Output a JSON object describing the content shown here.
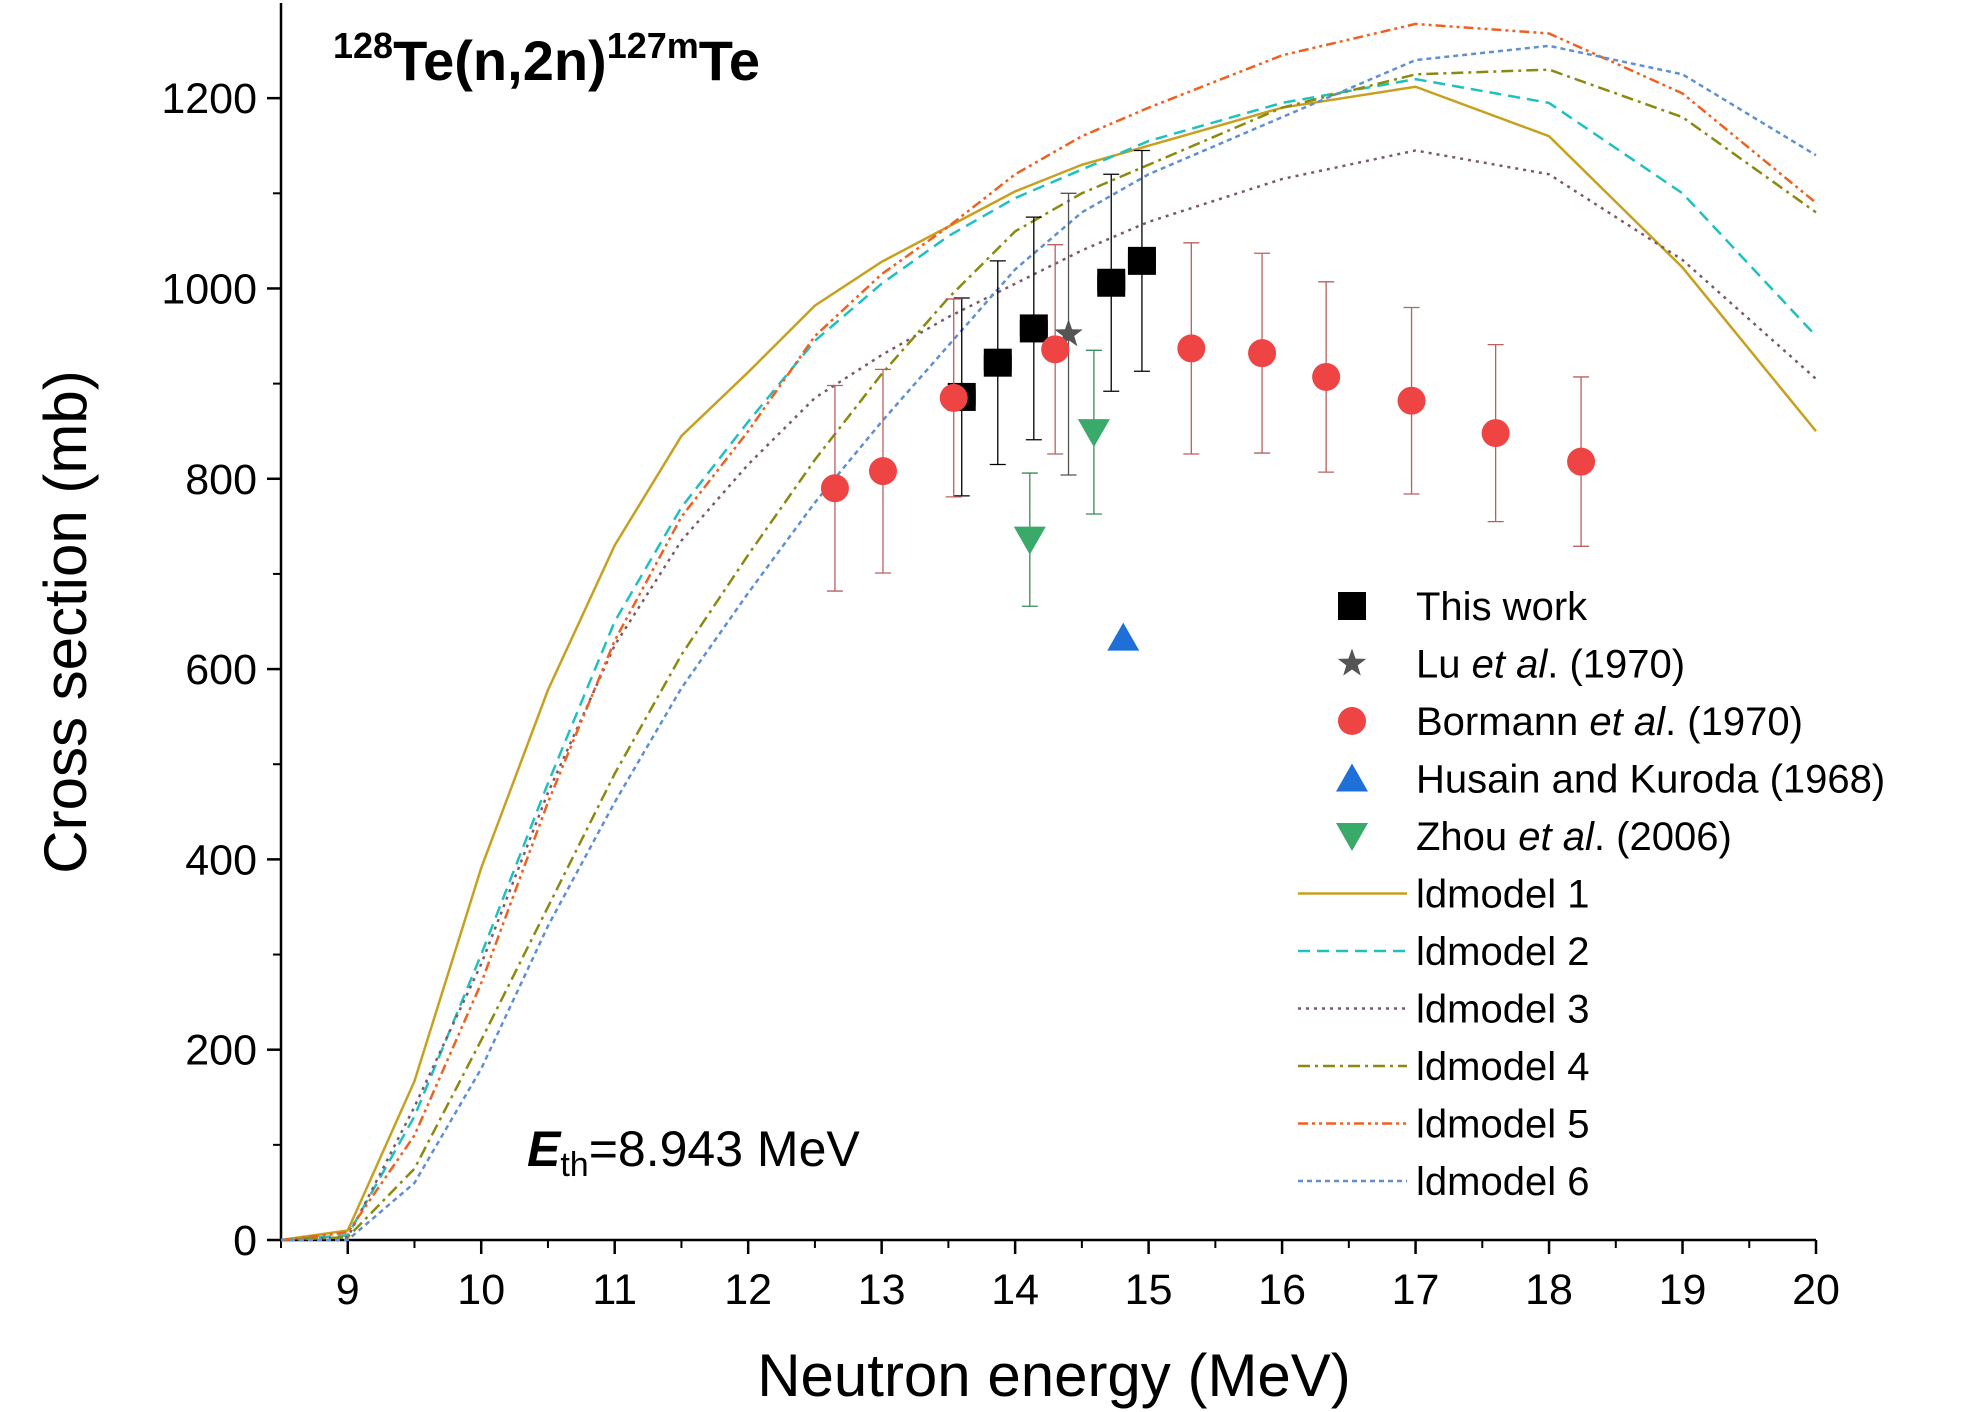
{
  "chart_data": {
    "type": "line",
    "title": {
      "mass1": "128",
      "reaction": "Te(n,2n)",
      "mass2": "127m",
      "element": "Te"
    },
    "annotation": {
      "symbol": "E",
      "subscript": "th",
      "text": "=8.943 MeV"
    },
    "x_label": "Neutron energy (MeV)",
    "y_label": "Cross section (mb)",
    "xlim": [
      8.5,
      20
    ],
    "ylim": [
      0,
      1300
    ],
    "xticks": [
      9,
      10,
      11,
      12,
      13,
      14,
      15,
      16,
      17,
      18,
      19,
      20
    ],
    "yticks": [
      0,
      200,
      400,
      600,
      800,
      1000,
      1200
    ],
    "series": [
      {
        "name": "This work",
        "type": "scatter",
        "marker": "square",
        "color": "#000000",
        "error_color": "#000000",
        "x": [
          13.6,
          13.87,
          14.14,
          14.72,
          14.95
        ],
        "values": [
          886,
          922,
          958,
          1006,
          1029
        ],
        "errors": [
          104,
          107,
          117,
          114,
          116
        ],
        "xerrors": [
          0.1,
          0.1,
          0.1,
          0.1,
          0.1
        ]
      },
      {
        "name": "Lu et al. (1970)",
        "type": "scatter",
        "marker": "star",
        "color": "#555555",
        "error_color": "#555555",
        "x": [
          14.4
        ],
        "values": [
          952
        ],
        "errors": [
          148
        ]
      },
      {
        "name": "Bormann et al. (1970)",
        "type": "scatter",
        "marker": "circle",
        "color": "#ee4444",
        "error_color": "#b86060",
        "x": [
          12.65,
          13.01,
          13.54,
          14.3,
          15.32,
          15.85,
          16.33,
          16.97,
          17.6,
          18.24
        ],
        "values": [
          790,
          808,
          885,
          936,
          937,
          932,
          907,
          882,
          848,
          818
        ],
        "errors": [
          108,
          107,
          104,
          110,
          111,
          105,
          100,
          98,
          93,
          89
        ]
      },
      {
        "name": "Husain and Kuroda (1968)",
        "type": "scatter",
        "marker": "triangle-up",
        "color": "#1f6fd8",
        "x": [
          14.81
        ],
        "values": [
          633
        ]
      },
      {
        "name": "Zhou et al. (2006)",
        "type": "scatter",
        "marker": "triangle-down",
        "color": "#3aaa6a",
        "error_color": "#3a8a5a",
        "x": [
          14.11,
          14.59
        ],
        "values": [
          736,
          849
        ],
        "errors": [
          70,
          86
        ]
      },
      {
        "name": "ldmodel 1",
        "type": "line",
        "color": "#c8a020",
        "dash": "none",
        "x": [
          8.5,
          9,
          9.5,
          10,
          10.5,
          11,
          11.5,
          12,
          12.5,
          13,
          13.5,
          14,
          14.5,
          15,
          16,
          17,
          18,
          19,
          20
        ],
        "values": [
          0,
          10,
          167,
          391,
          578,
          730,
          845,
          912,
          982,
          1028,
          1065,
          1102,
          1130,
          1150,
          1190,
          1212,
          1160,
          1022,
          850
        ]
      },
      {
        "name": "ldmodel 2",
        "type": "line",
        "color": "#20c0c0",
        "dash": "12 7",
        "x": [
          8.5,
          9,
          9.5,
          10,
          10.5,
          11,
          11.5,
          12,
          12.5,
          13,
          13.5,
          14,
          14.5,
          15,
          16,
          17,
          18,
          19,
          20
        ],
        "values": [
          0,
          5,
          130,
          300,
          480,
          650,
          770,
          860,
          945,
          1005,
          1055,
          1095,
          1125,
          1155,
          1195,
          1220,
          1195,
          1100,
          950
        ]
      },
      {
        "name": "ldmodel 3",
        "type": "line",
        "color": "#7a5a6a",
        "dash": "3 5",
        "x": [
          8.5,
          9,
          9.5,
          10,
          10.5,
          11,
          11.5,
          12,
          12.5,
          13,
          13.5,
          14,
          14.5,
          15,
          16,
          17,
          18,
          19,
          20
        ],
        "values": [
          0,
          3,
          140,
          290,
          470,
          625,
          735,
          815,
          885,
          930,
          970,
          1005,
          1040,
          1070,
          1115,
          1145,
          1120,
          1030,
          905
        ]
      },
      {
        "name": "ldmodel 4",
        "type": "line",
        "color": "#8a8a10",
        "dash": "12 5 3 5",
        "x": [
          8.5,
          9,
          9.5,
          10,
          10.5,
          11,
          11.5,
          12,
          12.5,
          13,
          13.5,
          14,
          14.5,
          15,
          16,
          17,
          18,
          19,
          20
        ],
        "values": [
          0,
          3,
          75,
          210,
          350,
          490,
          615,
          720,
          820,
          910,
          990,
          1060,
          1100,
          1130,
          1190,
          1225,
          1230,
          1180,
          1080
        ]
      },
      {
        "name": "ldmodel 5",
        "type": "line",
        "color": "#f06020",
        "dash": "10 4 3 4 3 4",
        "x": [
          8.5,
          9,
          9.5,
          10,
          10.5,
          11,
          11.5,
          12,
          12.5,
          13,
          13.5,
          14,
          14.5,
          15,
          16,
          17,
          18,
          19,
          20
        ],
        "values": [
          0,
          8,
          110,
          270,
          460,
          630,
          760,
          850,
          950,
          1015,
          1065,
          1120,
          1160,
          1190,
          1245,
          1278,
          1268,
          1205,
          1090
        ]
      },
      {
        "name": "ldmodel 6",
        "type": "line",
        "color": "#6090d0",
        "dash": "5 4",
        "x": [
          8.5,
          9,
          9.5,
          10,
          10.5,
          11,
          11.5,
          12,
          12.5,
          13,
          13.5,
          14,
          14.5,
          15,
          16,
          17,
          18,
          19,
          20
        ],
        "values": [
          0,
          0,
          60,
          180,
          330,
          460,
          580,
          680,
          775,
          860,
          940,
          1020,
          1080,
          1120,
          1180,
          1240,
          1255,
          1225,
          1140
        ]
      }
    ]
  }
}
